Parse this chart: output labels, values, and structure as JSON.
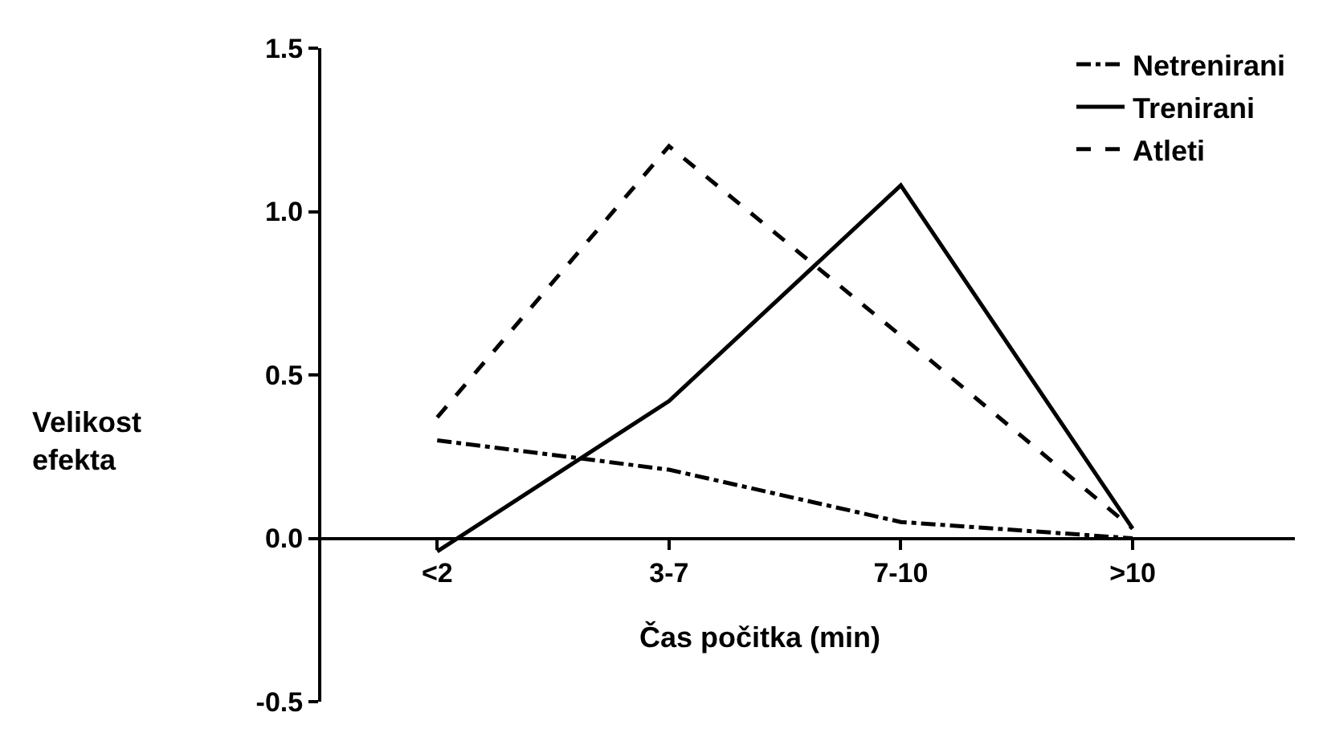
{
  "chart_data": {
    "type": "line",
    "xlabel": "Čas počitka (min)",
    "ylabel": "Velikost efekta",
    "categories": [
      "<2",
      "3-7",
      "7-10",
      ">10"
    ],
    "series": [
      {
        "name": "Netrenirani",
        "color": "#000000",
        "line_style": "dashdot",
        "values": [
          0.3,
          0.21,
          0.05,
          0.0
        ]
      },
      {
        "name": "Trenirani",
        "color": "#000000",
        "line_style": "solid",
        "values": [
          -0.04,
          0.42,
          1.08,
          0.03
        ]
      },
      {
        "name": "Atleti",
        "color": "#000000",
        "line_style": "dashed",
        "values": [
          0.37,
          1.2,
          0.62,
          0.03
        ]
      }
    ],
    "ylim": [
      -0.5,
      1.5
    ],
    "yticks": [
      {
        "value": -0.5,
        "label": "-0.5"
      },
      {
        "value": 0.0,
        "label": "0.0"
      },
      {
        "value": 0.5,
        "label": "0.5"
      },
      {
        "value": 1.0,
        "label": "1.0"
      },
      {
        "value": 1.5,
        "label": "1.5"
      }
    ],
    "legend": "top right",
    "marker": "none"
  }
}
